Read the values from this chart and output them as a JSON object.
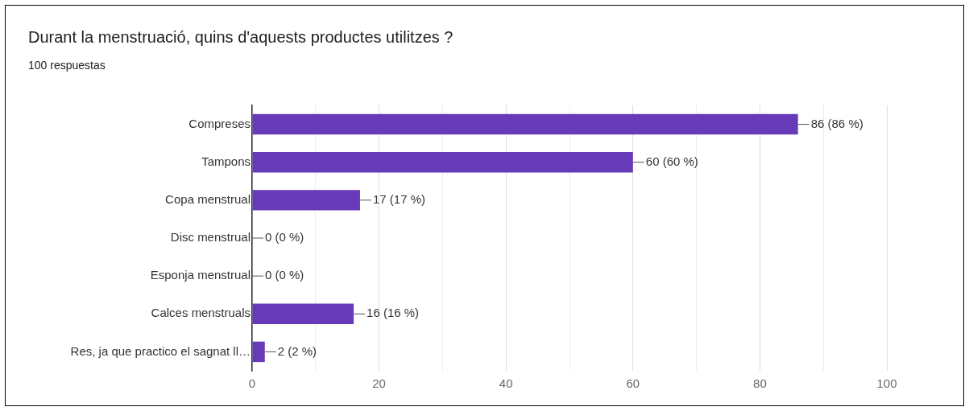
{
  "chart_data": {
    "type": "bar",
    "orientation": "horizontal",
    "title": "Durant la menstruació, quins d'aquests productes utilitzes ?",
    "subtitle": "100 respuestas",
    "categories": [
      "Compreses",
      "Tampons",
      "Copa menstrual",
      "Disc menstrual",
      "Esponja menstrual",
      "Calces menstruals",
      "Res, ja que practico el sagnat ll…"
    ],
    "values": [
      86,
      60,
      17,
      0,
      0,
      16,
      2
    ],
    "color": "#673ab7",
    "value_labels": [
      "86 (86 %)",
      "60 (60 %)",
      "17 (17 %)",
      "0 (0 %)",
      "0 (0 %)",
      "16 (16 %)",
      "2 (2 %)"
    ],
    "xlim": [
      0,
      100
    ],
    "xticks": [
      0,
      {
        "value": 10,
        "label": null
      },
      20,
      {
        "value": 30,
        "label": null
      },
      40,
      {
        "value": 50,
        "label": null
      },
      60,
      {
        "value": 70,
        "label": null
      },
      80,
      {
        "value": 90,
        "label": null
      },
      100
    ],
    "grid": "x",
    "legend": false
  }
}
